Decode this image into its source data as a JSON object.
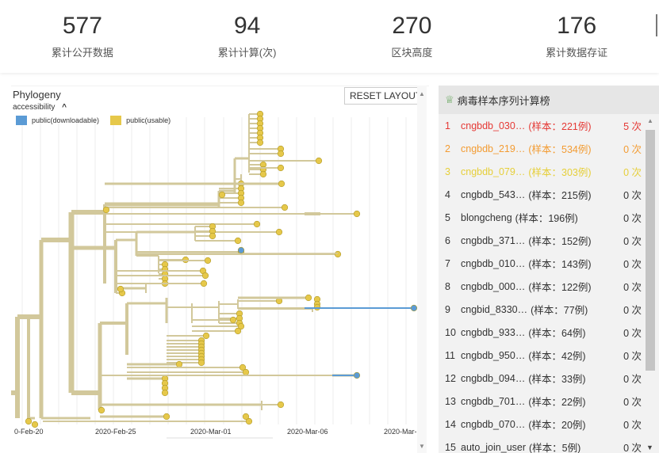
{
  "stats": [
    {
      "value": "577",
      "label": "累计公开数据"
    },
    {
      "value": "94",
      "label": "累计计算(次)"
    },
    {
      "value": "270",
      "label": "区块高度"
    },
    {
      "value": "176",
      "label": "累计数据存证"
    }
  ],
  "phylogeny": {
    "title": "Phylogeny",
    "accessibility_label": "accessibility",
    "collapse_icon": "chevron-up-icon",
    "legend": [
      {
        "label": "public(downloadable)",
        "color": "#5b9bd5"
      },
      {
        "label": "public(usable)",
        "color": "#e6c84a"
      }
    ],
    "reset_label": "RESET LAYOUT",
    "branch_color": "#d2c89b",
    "ticks": [
      "0-Feb-20",
      "2020-Feb-25",
      "2020-Mar-01",
      "2020-Mar-06",
      "2020-Mar-"
    ]
  },
  "ranking": {
    "title": "病毒样本序列计算榜",
    "trophy_icon": "trophy-icon",
    "rows": [
      {
        "rank": "1",
        "name": "cngbdb_030…",
        "samples": "(样本：221例)",
        "count": "5 次",
        "color": "#e53935"
      },
      {
        "rank": "2",
        "name": "cngbdb_219…",
        "samples": "(样本：534例)",
        "count": "0 次",
        "color": "#f39c33"
      },
      {
        "rank": "3",
        "name": "cngbdb_079…",
        "samples": "(样本：303例)",
        "count": "0 次",
        "color": "#e6cf3a"
      },
      {
        "rank": "4",
        "name": "cngbdb_543…",
        "samples": "(样本：215例)",
        "count": "0 次",
        "color": "#333333"
      },
      {
        "rank": "5",
        "name": "blongcheng",
        "samples": "(样本：196例)",
        "count": "0 次",
        "color": "#333333"
      },
      {
        "rank": "6",
        "name": "cngbdb_371…",
        "samples": "(样本：152例)",
        "count": "0 次",
        "color": "#333333"
      },
      {
        "rank": "7",
        "name": "cngbdb_010…",
        "samples": "(样本：143例)",
        "count": "0 次",
        "color": "#333333"
      },
      {
        "rank": "8",
        "name": "cngbdb_000…",
        "samples": "(样本：122例)",
        "count": "0 次",
        "color": "#333333"
      },
      {
        "rank": "9",
        "name": "cngbid_8330…",
        "samples": "(样本：77例)",
        "count": "0 次",
        "color": "#333333"
      },
      {
        "rank": "10",
        "name": "cngbdb_933…",
        "samples": "(样本：64例)",
        "count": "0 次",
        "color": "#333333"
      },
      {
        "rank": "11",
        "name": "cngbdb_950…",
        "samples": "(样本：42例)",
        "count": "0 次",
        "color": "#333333"
      },
      {
        "rank": "12",
        "name": "cngbdb_094…",
        "samples": "(样本：33例)",
        "count": "0 次",
        "color": "#333333"
      },
      {
        "rank": "13",
        "name": "cngbdb_701…",
        "samples": "(样本：22例)",
        "count": "0 次",
        "color": "#333333"
      },
      {
        "rank": "14",
        "name": "cngbdb_070…",
        "samples": "(样本：20例)",
        "count": "0 次",
        "color": "#333333"
      },
      {
        "rank": "15",
        "name": "auto_join_user",
        "samples": "(样本：5例)",
        "count": "0 次",
        "color": "#333333"
      }
    ]
  }
}
